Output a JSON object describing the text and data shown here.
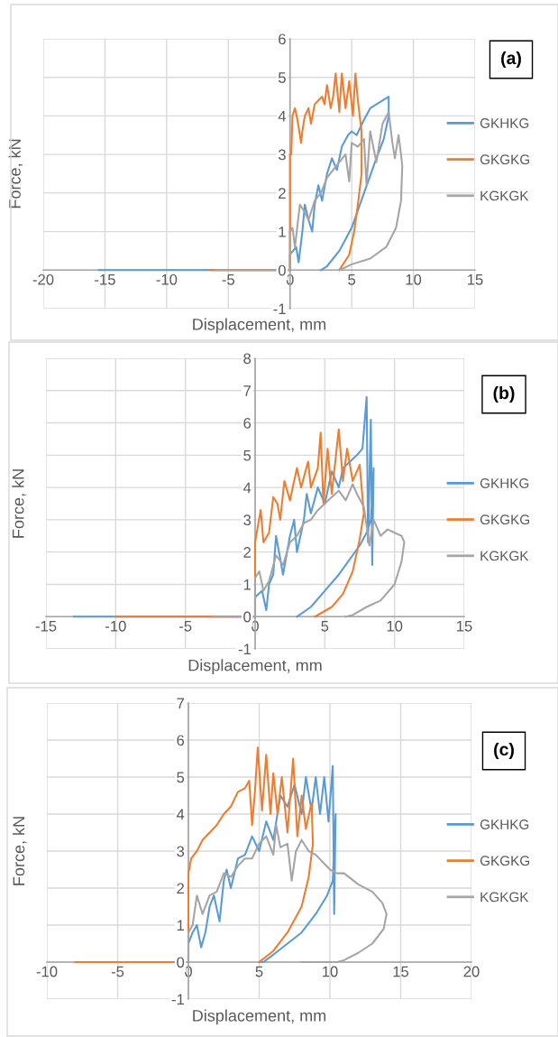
{
  "chart_data": [
    {
      "type": "line",
      "xlabel": "Displacement, mm",
      "ylabel": "Force, kN",
      "annotations": [
        "(a)"
      ],
      "xlim": [
        -20,
        15
      ],
      "ylim": [
        -1,
        6
      ],
      "xticks": [
        -20,
        -15,
        -10,
        -5,
        0,
        5,
        10,
        15
      ],
      "yticks": [
        -1,
        0,
        1,
        2,
        3,
        4,
        5,
        6
      ],
      "grid": true,
      "legend": "right",
      "line_style": "solid",
      "marker": "none",
      "series": [
        {
          "name": "GKHKG",
          "color": "#5b9bd5",
          "x": [
            -15.5,
            0,
            0,
            0.5,
            0.7,
            1,
            1.2,
            1.5,
            1.8,
            2,
            2.3,
            2.6,
            3,
            3.4,
            3.8,
            4.2,
            4.7,
            5.0,
            5.4,
            6,
            6.5,
            7,
            7.5,
            8,
            8,
            7.6,
            7,
            6,
            5,
            4,
            3,
            2.5
          ],
          "values": [
            0,
            0,
            0.4,
            0.6,
            0.2,
            1.0,
            1.7,
            1.3,
            1.0,
            1.7,
            2.2,
            1.8,
            2.5,
            2.9,
            2.6,
            3.2,
            3.5,
            3.6,
            3.5,
            3.9,
            4.2,
            4.3,
            4.4,
            4.5,
            4.0,
            3.4,
            2.9,
            2.0,
            1.1,
            0.5,
            0.1,
            0
          ]
        },
        {
          "name": "GKGKG",
          "color": "#ed7d31",
          "x": [
            -6.5,
            0,
            0,
            0.1,
            0.2,
            0.4,
            0.6,
            0.9,
            1,
            1.2,
            1.5,
            1.7,
            2,
            2.3,
            2.6,
            2.8,
            3,
            3.3,
            3.5,
            3.7,
            4,
            4.2,
            4.5,
            4.8,
            5.1,
            5.3,
            5.5,
            5.8,
            5.8,
            5.5,
            5.2,
            4.8,
            4
          ],
          "values": [
            0,
            0,
            3.0,
            3.0,
            4.0,
            4.2,
            3.9,
            3.3,
            3.6,
            4.0,
            4.2,
            3.8,
            4.3,
            4.4,
            4.5,
            4.3,
            4.8,
            4.2,
            4.5,
            5.1,
            4.1,
            5.1,
            4.2,
            4.9,
            4.0,
            5.1,
            4.4,
            3.6,
            2.5,
            1.7,
            1.0,
            0.4,
            0
          ]
        },
        {
          "name": "KGKGK",
          "color": "#a5a5a5",
          "x": [
            -6,
            0,
            0,
            0.2,
            0.4,
            0.8,
            1.2,
            1.5,
            2,
            2.5,
            3,
            3.5,
            4,
            4.5,
            4.8,
            5,
            5.5,
            6,
            6.2,
            6.5,
            7,
            7.5,
            8,
            8.3,
            8.5,
            8.8,
            9.0,
            9.1,
            9.0,
            8.6,
            7.8,
            6.5,
            5,
            4
          ],
          "values": [
            0,
            0,
            1.0,
            1.1,
            0.6,
            1.7,
            1.5,
            1.3,
            1.8,
            2.0,
            2.4,
            2.6,
            2.8,
            3.0,
            2.3,
            3.3,
            3.2,
            3.4,
            2.2,
            3.6,
            2.8,
            3.8,
            4.1,
            3.3,
            2.9,
            3.5,
            3.0,
            2.7,
            1.8,
            1.1,
            0.6,
            0.3,
            0.15,
            0
          ]
        }
      ]
    },
    {
      "type": "line",
      "xlabel": "Displacement, mm",
      "ylabel": "Force, kN",
      "annotations": [
        "(b)"
      ],
      "xlim": [
        -15,
        15
      ],
      "ylim": [
        -1,
        8
      ],
      "xticks": [
        -15,
        -10,
        -5,
        0,
        5,
        10,
        15
      ],
      "yticks": [
        -1,
        0,
        1,
        2,
        3,
        4,
        5,
        6,
        7,
        8
      ],
      "grid": true,
      "legend": "right",
      "line_style": "solid",
      "marker": "none",
      "series": [
        {
          "name": "GKHKG",
          "color": "#5b9bd5",
          "x": [
            -13,
            0,
            0,
            0.5,
            0.8,
            1,
            1.3,
            1.5,
            1.8,
            2,
            2.5,
            2.8,
            3.0,
            3.5,
            3.7,
            4,
            4.5,
            5,
            5.5,
            6,
            6.3,
            6.8,
            7.3,
            7.7,
            8.0,
            8.1,
            8.3,
            8.4,
            8.5,
            8.3,
            8,
            7.5,
            6,
            5,
            4,
            3
          ],
          "values": [
            0,
            0,
            0.6,
            0.8,
            0.2,
            1.0,
            1.3,
            2.5,
            1.8,
            1.3,
            2.5,
            3.0,
            2.0,
            3.0,
            3.8,
            3.2,
            4.0,
            3.5,
            4.5,
            4.0,
            4.6,
            4.8,
            5.0,
            5.2,
            6.8,
            2.3,
            6.1,
            1.6,
            4.6,
            3.0,
            2.6,
            2.2,
            1.3,
            0.8,
            0.3,
            0
          ]
        },
        {
          "name": "GKGKG",
          "color": "#ed7d31",
          "x": [
            -10,
            0,
            0,
            0.2,
            0.4,
            0.6,
            1,
            1.3,
            1.6,
            1.8,
            2.1,
            2.5,
            3,
            3.3,
            3.8,
            4,
            4.5,
            4.7,
            4.9,
            5.2,
            5.5,
            6,
            6.3,
            6.6,
            7,
            7.5,
            7.8,
            7.5,
            7,
            6.3,
            5.5,
            4.3
          ],
          "values": [
            0,
            0,
            2.3,
            2.8,
            3.3,
            2.3,
            2.6,
            3.7,
            3.5,
            3.0,
            4.2,
            3.6,
            4.6,
            4.0,
            4.8,
            4.0,
            4.6,
            5.7,
            3.5,
            5.2,
            3.8,
            5.8,
            4.2,
            5.2,
            4.2,
            4.7,
            3.2,
            2.4,
            1.4,
            0.7,
            0.3,
            0
          ]
        },
        {
          "name": "KGKGK",
          "color": "#a5a5a5",
          "x": [
            -3,
            0,
            0,
            0.3,
            0.6,
            1,
            1.5,
            2,
            2.5,
            3,
            3.5,
            4,
            4.5,
            5,
            5.5,
            6,
            6.5,
            7,
            7.3,
            7.8,
            8.2,
            8.5,
            9,
            9.5,
            10,
            10.5,
            10.7,
            10.5,
            10,
            9,
            8,
            7,
            6.5
          ],
          "values": [
            0,
            0,
            1.2,
            1.4,
            0.8,
            1.1,
            1.9,
            1.6,
            2.3,
            2.5,
            2.9,
            3.0,
            3.3,
            3.5,
            3.7,
            3.9,
            3.6,
            4.1,
            3.8,
            3.4,
            2.2,
            3.0,
            2.5,
            2.7,
            2.6,
            2.5,
            2.3,
            1.7,
            1.0,
            0.5,
            0.3,
            0.05,
            0
          ]
        }
      ]
    },
    {
      "type": "line",
      "xlabel": "Displacement, mm",
      "ylabel": "Force, kN",
      "annotations": [
        "(c)"
      ],
      "xlim": [
        -10,
        20
      ],
      "ylim": [
        -1,
        7
      ],
      "xticks": [
        -10,
        -5,
        0,
        5,
        10,
        15,
        20
      ],
      "yticks": [
        -1,
        0,
        1,
        2,
        3,
        4,
        5,
        6,
        7
      ],
      "grid": true,
      "legend": "right",
      "line_style": "solid",
      "marker": "none",
      "series": [
        {
          "name": "GKHKG",
          "color": "#5b9bd5",
          "x": [
            -4,
            0,
            0,
            0.3,
            0.6,
            0.9,
            1.2,
            1.5,
            1.8,
            2.2,
            2.5,
            2.7,
            3,
            3.5,
            4,
            4.5,
            5,
            5.5,
            6,
            6.5,
            7,
            7.5,
            8,
            8.3,
            8.7,
            9,
            9.3,
            9.6,
            9.9,
            10.2,
            10.3,
            10.4,
            10.2,
            9.8,
            9,
            8,
            7,
            6,
            5.3,
            5
          ],
          "values": [
            0,
            0,
            0.5,
            0.8,
            1.0,
            0.4,
            0.8,
            1.5,
            1.8,
            1.1,
            2.2,
            2.5,
            2.0,
            2.8,
            2.9,
            3.4,
            3.0,
            3.8,
            3.3,
            4.5,
            4.2,
            4.8,
            4.0,
            5.0,
            4.1,
            5.0,
            4.0,
            5.0,
            3.8,
            5.3,
            1.3,
            4.0,
            2.2,
            1.8,
            1.3,
            0.8,
            0.5,
            0.2,
            0,
            0
          ]
        },
        {
          "name": "GKGKG",
          "color": "#ed7d31",
          "x": [
            -8,
            0,
            0,
            0.2,
            0.6,
            1,
            1.5,
            2,
            2.5,
            3,
            3.5,
            4,
            4.3,
            4.5,
            4.7,
            4.9,
            5.2,
            5.5,
            5.8,
            6,
            6.3,
            6.6,
            7,
            7.4,
            7.7,
            8,
            8.3,
            8.7,
            8.8,
            8.5,
            8,
            7,
            6,
            5
          ],
          "values": [
            0,
            0,
            2.4,
            2.8,
            3.0,
            3.3,
            3.5,
            3.7,
            4.0,
            4.2,
            4.6,
            4.7,
            4.9,
            3.7,
            4.6,
            5.8,
            4.1,
            5.6,
            4.0,
            5.1,
            4.0,
            5.0,
            3.5,
            5.5,
            3.4,
            4.5,
            3.6,
            4.3,
            3.2,
            2.3,
            1.5,
            0.8,
            0.3,
            0
          ]
        },
        {
          "name": "KGKGK",
          "color": "#a5a5a5",
          "x": [
            0,
            0,
            0.3,
            0.6,
            1,
            1.5,
            2,
            2.5,
            3,
            3.5,
            4,
            4.5,
            5,
            5.5,
            6,
            6.2,
            6.5,
            7,
            7.3,
            7.6,
            8,
            8.5,
            9,
            9.5,
            10,
            10.5,
            11,
            12,
            13,
            13.7,
            14,
            13.8,
            13,
            12,
            11,
            10.5,
            8
          ],
          "values": [
            0,
            0.8,
            1.0,
            1.8,
            1.3,
            1.8,
            1.9,
            2.4,
            2.3,
            2.6,
            2.8,
            2.8,
            3.2,
            3.4,
            2.9,
            3.7,
            3.1,
            3.2,
            2.2,
            3.0,
            3.3,
            3.0,
            2.9,
            2.7,
            2.5,
            2.4,
            2.4,
            2.1,
            1.9,
            1.6,
            1.3,
            0.9,
            0.5,
            0.25,
            0.05,
            0,
            0
          ]
        }
      ]
    }
  ]
}
